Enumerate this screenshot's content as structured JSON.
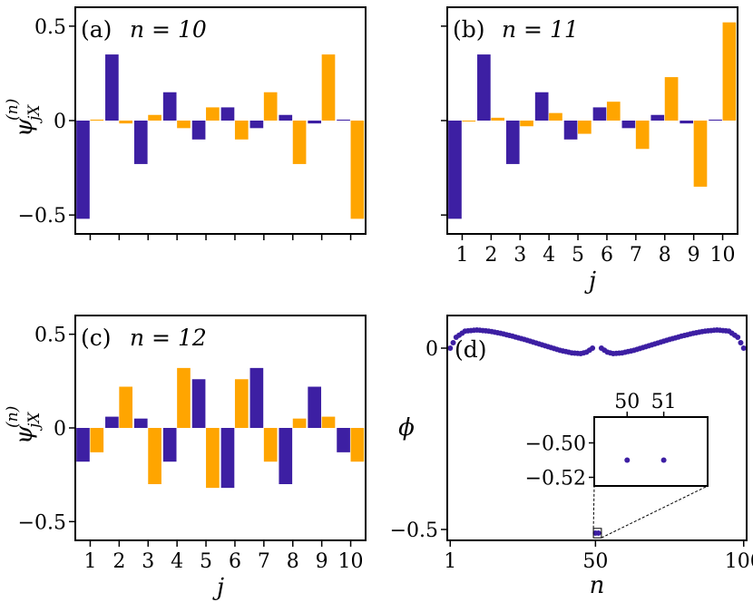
{
  "colors": {
    "primary": "#3d1fa3",
    "secondary": "#ffa500",
    "frame": "#000000"
  },
  "chart_data": [
    {
      "id": "a",
      "type": "bar",
      "panel_label": "(a)",
      "annotation": "n = 10",
      "ylabel": {
        "base": "ψ",
        "sub": "jX",
        "sup": "(n)"
      },
      "xlabel": "",
      "ylim": [
        -0.6,
        0.6
      ],
      "yticks": [
        {
          "v": 0.5,
          "t": "0.5"
        },
        {
          "v": 0,
          "t": "0"
        },
        {
          "v": -0.5,
          "t": "−0.5"
        }
      ],
      "xticks": [],
      "show_ticklabels_x": false,
      "categories": [
        1,
        2,
        3,
        4,
        5,
        6,
        7,
        8,
        9,
        10
      ],
      "series": [
        {
          "color_key": "primary",
          "values": [
            -0.52,
            0.35,
            -0.23,
            0.15,
            -0.1,
            0.07,
            -0.04,
            0.03,
            -0.015,
            0.005
          ]
        },
        {
          "color_key": "secondary",
          "values": [
            0.005,
            -0.015,
            0.03,
            -0.04,
            0.07,
            -0.1,
            0.15,
            -0.23,
            0.35,
            -0.52
          ]
        }
      ]
    },
    {
      "id": "b",
      "type": "bar",
      "panel_label": "(b)",
      "annotation": "n = 11",
      "ylabel": null,
      "xlabel": "j",
      "ylim": [
        -0.6,
        0.6
      ],
      "yticks": [
        {
          "v": 0.5,
          "t": ""
        },
        {
          "v": 0,
          "t": ""
        },
        {
          "v": -0.5,
          "t": ""
        }
      ],
      "xticks": [
        "1",
        "2",
        "3",
        "4",
        "5",
        "6",
        "7",
        "8",
        "9",
        "10"
      ],
      "show_ticklabels_x": true,
      "categories": [
        1,
        2,
        3,
        4,
        5,
        6,
        7,
        8,
        9,
        10
      ],
      "series": [
        {
          "color_key": "primary",
          "values": [
            -0.52,
            0.35,
            -0.23,
            0.15,
            -0.1,
            0.07,
            -0.04,
            0.03,
            -0.015,
            0.005
          ]
        },
        {
          "color_key": "secondary",
          "values": [
            -0.005,
            0.015,
            -0.03,
            0.04,
            -0.07,
            0.1,
            -0.15,
            0.23,
            -0.35,
            0.52
          ]
        }
      ]
    },
    {
      "id": "c",
      "type": "bar",
      "panel_label": "(c)",
      "annotation": "n = 12",
      "ylabel": {
        "base": "ψ",
        "sub": "jX",
        "sup": "(n)"
      },
      "xlabel": "j",
      "ylim": [
        -0.6,
        0.6
      ],
      "yticks": [
        {
          "v": 0.5,
          "t": "0.5"
        },
        {
          "v": 0,
          "t": "0"
        },
        {
          "v": -0.5,
          "t": "−0.5"
        }
      ],
      "xticks": [
        "1",
        "2",
        "3",
        "4",
        "5",
        "6",
        "7",
        "8",
        "9",
        "10"
      ],
      "show_ticklabels_x": true,
      "categories": [
        1,
        2,
        3,
        4,
        5,
        6,
        7,
        8,
        9,
        10
      ],
      "series": [
        {
          "color_key": "primary",
          "values": [
            -0.18,
            0.06,
            0.05,
            -0.18,
            0.26,
            -0.32,
            0.32,
            -0.3,
            0.22,
            -0.13
          ]
        },
        {
          "color_key": "secondary",
          "values": [
            -0.13,
            0.22,
            -0.3,
            0.32,
            -0.32,
            0.26,
            -0.18,
            0.05,
            0.06,
            -0.18
          ]
        }
      ]
    },
    {
      "id": "d",
      "type": "scatter",
      "panel_label": "(d)",
      "xlabel": "n",
      "ylabel": "ϕ",
      "xlim": [
        0,
        101
      ],
      "ylim": [
        -0.53,
        0.09
      ],
      "xticks": [
        {
          "v": 1,
          "t": "1"
        },
        {
          "v": 50,
          "t": "50"
        },
        {
          "v": 100,
          "t": "100"
        }
      ],
      "yticks": [
        {
          "v": 0,
          "t": "0"
        },
        {
          "v": -0.5,
          "t": "−0.5"
        }
      ],
      "curve_points": [
        [
          1,
          0.0
        ],
        [
          3,
          0.03
        ],
        [
          6,
          0.047
        ],
        [
          10,
          0.05
        ],
        [
          14,
          0.047
        ],
        [
          18,
          0.041
        ],
        [
          22,
          0.033
        ],
        [
          26,
          0.024
        ],
        [
          30,
          0.014
        ],
        [
          34,
          0.004
        ],
        [
          38,
          -0.006
        ],
        [
          42,
          -0.013
        ],
        [
          45,
          -0.015
        ],
        [
          47,
          -0.011
        ],
        [
          49,
          0.0
        ],
        [
          52,
          0.0
        ],
        [
          54,
          -0.011
        ],
        [
          56,
          -0.015
        ],
        [
          59,
          -0.013
        ],
        [
          63,
          -0.006
        ],
        [
          67,
          0.004
        ],
        [
          71,
          0.014
        ],
        [
          75,
          0.024
        ],
        [
          79,
          0.033
        ],
        [
          83,
          0.041
        ],
        [
          87,
          0.047
        ],
        [
          91,
          0.05
        ],
        [
          95,
          0.047
        ],
        [
          98,
          0.03
        ],
        [
          100,
          0.0
        ]
      ],
      "highlight_points": [
        {
          "n": 50,
          "phi": -0.51
        },
        {
          "n": 51,
          "phi": -0.51
        }
      ],
      "inset": {
        "xticks": [
          {
            "v": 50,
            "t": "50"
          },
          {
            "v": 51,
            "t": "51"
          }
        ],
        "yticks": [
          {
            "v": -0.5,
            "t": "−0.50"
          },
          {
            "v": -0.52,
            "t": "−0.52"
          }
        ],
        "xlim": [
          49.1,
          52.2
        ],
        "ylim": [
          -0.525,
          -0.485
        ]
      }
    }
  ]
}
